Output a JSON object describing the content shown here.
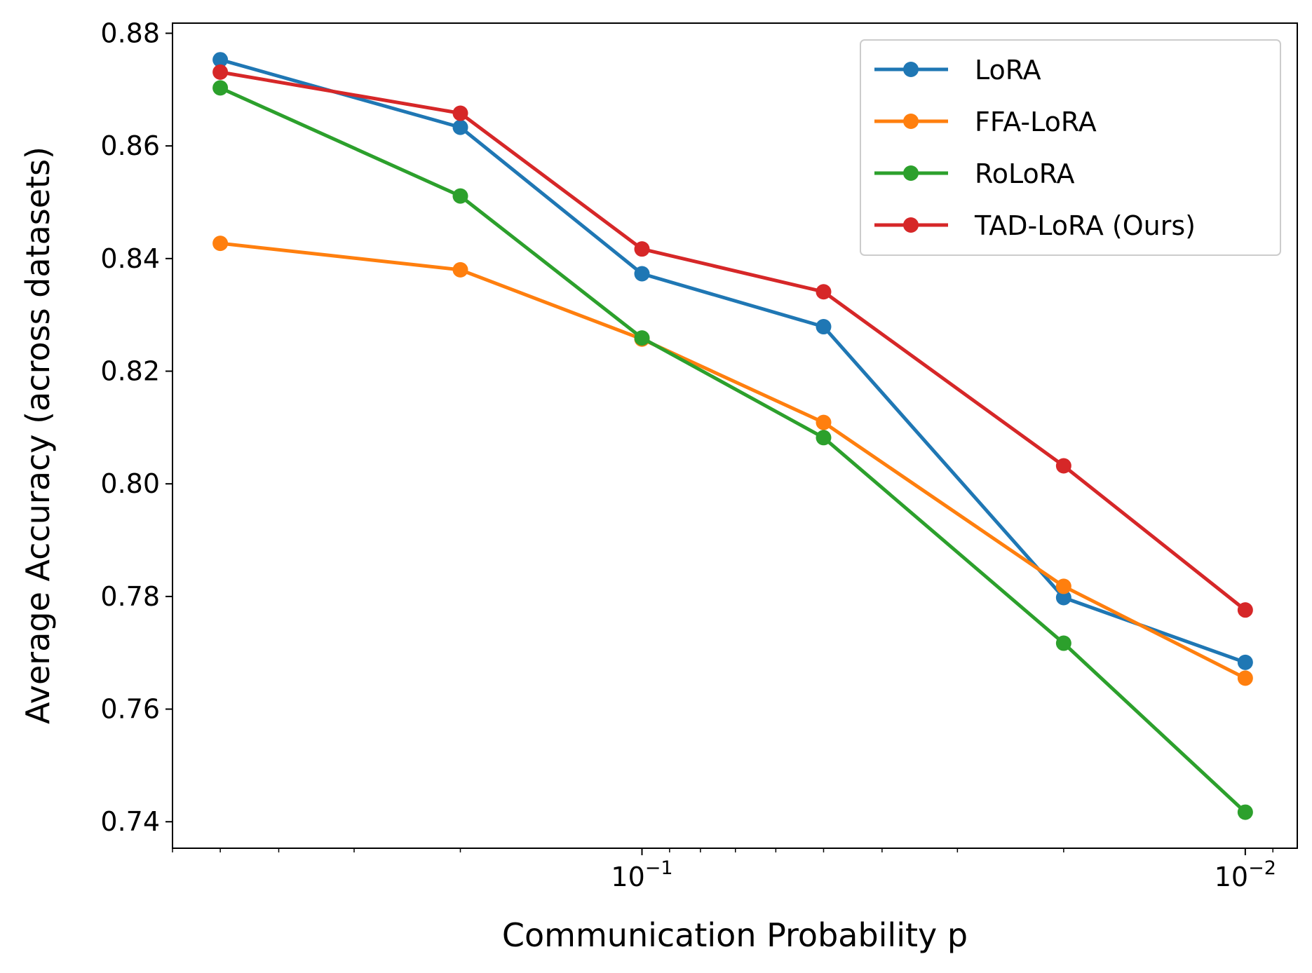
{
  "chart_data": {
    "type": "line",
    "title": "",
    "xlabel": "Communication Probability p",
    "ylabel": "Average Accuracy (across datasets)",
    "xscale": "log",
    "xaxis_direction": "reversed",
    "x": [
      0.5,
      0.2,
      0.1,
      0.05,
      0.02,
      0.01
    ],
    "xlim": [
      0.6,
      0.0082
    ],
    "ylim": [
      0.7353,
      0.8818
    ],
    "grid": false,
    "legend_position": "top-right",
    "yticks": [
      {
        "value": 0.74,
        "label": "0.74"
      },
      {
        "value": 0.76,
        "label": "0.76"
      },
      {
        "value": 0.78,
        "label": "0.78"
      },
      {
        "value": 0.8,
        "label": "0.80"
      },
      {
        "value": 0.82,
        "label": "0.82"
      },
      {
        "value": 0.84,
        "label": "0.84"
      },
      {
        "value": 0.86,
        "label": "0.86"
      },
      {
        "value": 0.88,
        "label": "0.88"
      }
    ],
    "xticks_major": [
      {
        "value": 0.1,
        "base": "10",
        "exp": "−1"
      },
      {
        "value": 0.01,
        "base": "10",
        "exp": "−2"
      }
    ],
    "xticks_minor": [
      0.6,
      0.5,
      0.4,
      0.3,
      0.2,
      0.09,
      0.08,
      0.07,
      0.06,
      0.05,
      0.04,
      0.03,
      0.02,
      0.009
    ],
    "series": [
      {
        "name": "LoRA",
        "color": "#1f77b4",
        "values": [
          0.8753,
          0.8633,
          0.8373,
          0.8279,
          0.7798,
          0.7683
        ]
      },
      {
        "name": "FFA-LoRA",
        "color": "#ff7f0e",
        "values": [
          0.8427,
          0.838,
          0.8257,
          0.8109,
          0.7818,
          0.7655
        ]
      },
      {
        "name": "RoLoRA",
        "color": "#2ca02c",
        "values": [
          0.8703,
          0.8511,
          0.8259,
          0.8082,
          0.7717,
          0.7417
        ]
      },
      {
        "name": "TAD-LoRA (Ours)",
        "color": "#d62728",
        "values": [
          0.8731,
          0.8658,
          0.8417,
          0.8341,
          0.8032,
          0.7776
        ]
      }
    ]
  }
}
